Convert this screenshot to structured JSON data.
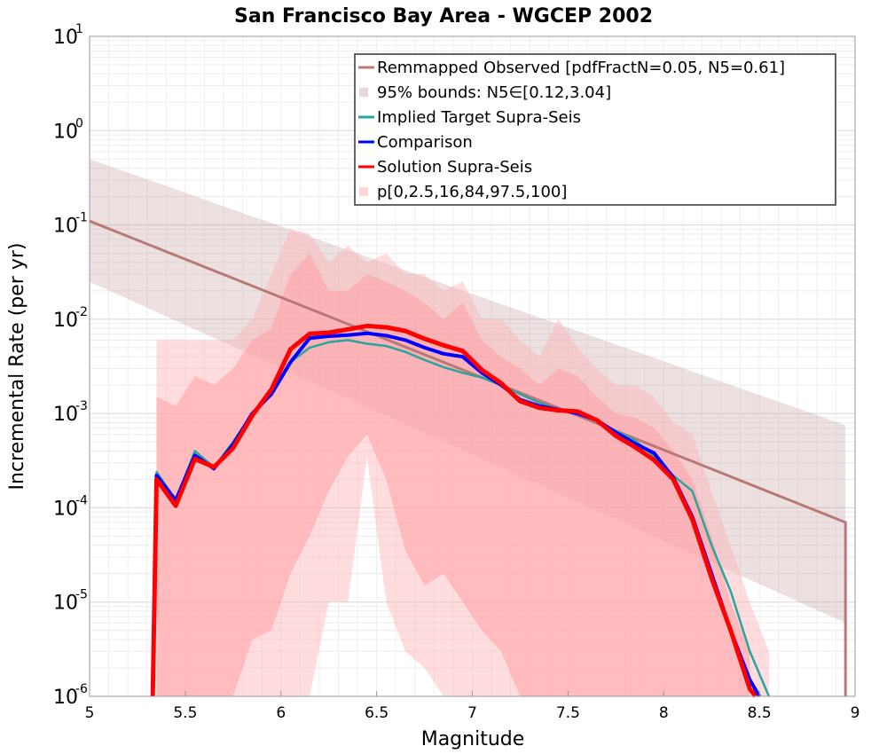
{
  "chart_data": {
    "type": "line",
    "title": "San Francisco Bay Area - WGCEP 2002",
    "xlabel": "Magnitude",
    "ylabel": "Incremental Rate (per yr)",
    "xlim": [
      5,
      9
    ],
    "ylim": [
      1e-06,
      10
    ],
    "yscale": "log",
    "grid": true,
    "legend_position": "top-right",
    "x_ticks": [
      {
        "value": 5,
        "label": "5"
      },
      {
        "value": 5.5,
        "label": "5.5"
      },
      {
        "value": 6,
        "label": "6"
      },
      {
        "value": 6.5,
        "label": "6.5"
      },
      {
        "value": 7,
        "label": "7"
      },
      {
        "value": 7.5,
        "label": "7.5"
      },
      {
        "value": 8,
        "label": "8"
      },
      {
        "value": 8.5,
        "label": "8.5"
      },
      {
        "value": 9,
        "label": "9"
      }
    ],
    "y_ticks": [
      {
        "value": 1e-06,
        "base": "10",
        "exp": "-6"
      },
      {
        "value": 1e-05,
        "base": "10",
        "exp": "-5"
      },
      {
        "value": 0.0001,
        "base": "10",
        "exp": "-4"
      },
      {
        "value": 0.001,
        "base": "10",
        "exp": "-3"
      },
      {
        "value": 0.01,
        "base": "10",
        "exp": "-2"
      },
      {
        "value": 0.1,
        "base": "10",
        "exp": "-1"
      },
      {
        "value": 1,
        "base": "10",
        "exp": "0"
      },
      {
        "value": 10,
        "base": "10",
        "exp": "1"
      }
    ],
    "bands": [
      {
        "name": "95% bounds: N5∈[0.12,3.04]",
        "color": "#b98f95",
        "opacity": 0.28,
        "x": [
          5.0,
          8.95
        ],
        "lower": [
          0.025,
          6e-06
        ],
        "upper": [
          0.5,
          0.00075
        ]
      },
      {
        "name": "p[0,2.5,16,84,97.5,100]",
        "color": "#ffb3b8",
        "opacity": 0.45,
        "x": [
          5.35,
          5.45,
          5.55,
          5.65,
          5.75,
          5.85,
          5.95,
          6.05,
          6.15,
          6.25,
          6.35,
          6.45,
          6.55,
          6.65,
          6.75,
          6.85,
          6.95,
          7.05,
          7.15,
          7.25,
          7.35,
          7.45,
          7.55,
          7.65,
          7.75,
          7.85,
          7.95,
          8.05,
          8.15,
          8.25,
          8.35,
          8.45,
          8.55
        ],
        "lower": [
          1e-06,
          1e-06,
          1e-06,
          1e-06,
          1e-06,
          1e-06,
          1e-06,
          1e-06,
          1e-06,
          1e-05,
          1e-05,
          0.00035,
          1e-05,
          3e-06,
          2e-06,
          1e-06,
          1e-06,
          1e-06,
          1e-06,
          1e-06,
          1e-06,
          1e-06,
          1e-06,
          1e-06,
          1e-06,
          1e-06,
          1e-06,
          1e-06,
          1e-06,
          1e-06,
          1e-06,
          1e-06,
          1e-06
        ],
        "upper": [
          0.006,
          0.006,
          0.006,
          0.006,
          0.006,
          0.01,
          0.03,
          0.09,
          0.08,
          0.04,
          0.06,
          0.04,
          0.05,
          0.03,
          0.03,
          0.02,
          0.025,
          0.01,
          0.01,
          0.006,
          0.004,
          0.01,
          0.005,
          0.003,
          0.002,
          0.002,
          0.0015,
          0.0008,
          0.0006,
          0.00015,
          4e-05,
          1e-05,
          3e-06
        ]
      },
      {
        "name": "p inner band",
        "color": "#ff9a9e",
        "opacity": 0.5,
        "x": [
          5.35,
          5.45,
          5.55,
          5.65,
          5.75,
          5.85,
          5.95,
          6.05,
          6.15,
          6.25,
          6.35,
          6.45,
          6.55,
          6.65,
          6.75,
          6.85,
          6.95,
          7.05,
          7.15,
          7.25,
          7.35,
          7.45,
          7.55,
          7.65,
          7.75,
          7.85,
          7.95,
          8.05,
          8.15,
          8.25,
          8.35,
          8.45
        ],
        "lower": [
          1e-06,
          1e-06,
          1e-06,
          1e-06,
          1e-06,
          4e-06,
          5e-06,
          2e-05,
          5e-05,
          0.00015,
          0.00035,
          0.0006,
          0.0002,
          3.5e-05,
          1.5e-05,
          2e-05,
          1e-05,
          5e-06,
          3e-06,
          1e-06,
          1e-06,
          1e-06,
          1e-06,
          1e-06,
          1e-06,
          1e-06,
          1e-06,
          1e-06,
          1e-06,
          1e-06,
          1e-06,
          1e-06
        ],
        "upper": [
          0.0015,
          0.0012,
          0.0025,
          0.002,
          0.003,
          0.006,
          0.008,
          0.03,
          0.05,
          0.02,
          0.02,
          0.03,
          0.025,
          0.02,
          0.015,
          0.01,
          0.015,
          0.006,
          0.004,
          0.003,
          0.002,
          0.003,
          0.0025,
          0.0015,
          0.001,
          0.0009,
          0.0007,
          0.0004,
          0.0002,
          5e-05,
          1e-05,
          3e-06
        ]
      }
    ],
    "series": [
      {
        "name": "Remmapped Observed [pdfFractN=0.05, N5=0.61]",
        "color": "#b87878",
        "width": 3,
        "x": [
          5.0,
          8.95,
          8.95
        ],
        "y": [
          0.11,
          7e-05,
          1e-06
        ]
      },
      {
        "name": "Implied Target Supra-Seis",
        "color": "#2aa59e",
        "width": 2.5,
        "x": [
          5.33,
          5.35,
          5.45,
          5.55,
          5.65,
          5.75,
          5.85,
          5.95,
          6.05,
          6.15,
          6.25,
          6.35,
          6.45,
          6.55,
          6.65,
          6.75,
          6.85,
          6.95,
          7.05,
          7.15,
          7.25,
          7.35,
          7.45,
          7.55,
          7.65,
          7.75,
          7.85,
          7.95,
          8.05,
          8.15,
          8.25,
          8.35,
          8.45,
          8.55
        ],
        "y": [
          1e-06,
          0.00024,
          0.00012,
          0.0004,
          0.00027,
          0.0005,
          0.001,
          0.0017,
          0.0035,
          0.005,
          0.0057,
          0.006,
          0.0055,
          0.0052,
          0.0045,
          0.0037,
          0.0031,
          0.0027,
          0.0024,
          0.002,
          0.0016,
          0.0013,
          0.0011,
          0.001,
          0.00085,
          0.00065,
          0.00052,
          0.00035,
          0.00022,
          0.00015,
          4e-05,
          1.3e-05,
          3e-06,
          1e-06
        ]
      },
      {
        "name": "Comparison",
        "color": "#0000ff",
        "width": 4,
        "x": [
          5.33,
          5.35,
          5.45,
          5.55,
          5.65,
          5.75,
          5.85,
          5.95,
          6.05,
          6.15,
          6.25,
          6.35,
          6.45,
          6.55,
          6.65,
          6.75,
          6.85,
          6.95,
          7.05,
          7.15,
          7.25,
          7.35,
          7.45,
          7.55,
          7.65,
          7.75,
          7.85,
          7.95,
          8.05,
          8.15,
          8.25,
          8.35,
          8.45,
          8.5
        ],
        "y": [
          1e-06,
          0.00022,
          0.00012,
          0.00036,
          0.00026,
          0.00047,
          0.001,
          0.0016,
          0.0035,
          0.0063,
          0.0066,
          0.0068,
          0.0071,
          0.0067,
          0.006,
          0.005,
          0.0043,
          0.004,
          0.0027,
          0.002,
          0.0014,
          0.0012,
          0.0011,
          0.001,
          0.00085,
          0.00063,
          0.00048,
          0.00038,
          0.00021,
          8e-05,
          2e-05,
          5e-06,
          1.5e-06,
          1e-06
        ]
      },
      {
        "name": "Solution Supra-Seis",
        "color": "#ff0000",
        "width": 5,
        "x": [
          5.33,
          5.35,
          5.45,
          5.55,
          5.65,
          5.75,
          5.85,
          5.95,
          6.05,
          6.15,
          6.25,
          6.35,
          6.45,
          6.55,
          6.65,
          6.75,
          6.85,
          6.95,
          7.05,
          7.15,
          7.25,
          7.35,
          7.45,
          7.55,
          7.65,
          7.75,
          7.85,
          7.95,
          8.05,
          8.15,
          8.25,
          8.35,
          8.45,
          8.48
        ],
        "y": [
          1e-06,
          0.0002,
          0.000105,
          0.00033,
          0.00027,
          0.00043,
          0.00095,
          0.0018,
          0.0048,
          0.007,
          0.0072,
          0.0078,
          0.0085,
          0.0082,
          0.0075,
          0.0062,
          0.0053,
          0.0046,
          0.0029,
          0.0021,
          0.00135,
          0.00115,
          0.00108,
          0.00105,
          0.00085,
          0.00058,
          0.00044,
          0.00032,
          0.0002,
          7.5e-05,
          1.8e-05,
          5e-06,
          1.2e-06,
          1e-06
        ]
      }
    ],
    "legend": [
      {
        "label": "Remmapped Observed [pdfFractN=0.05, N5=0.61]",
        "kind": "line",
        "color": "#b87878"
      },
      {
        "label": "95% bounds: N5∈[0.12,3.04]",
        "kind": "band",
        "color": "#e8d8da"
      },
      {
        "label": "Implied Target Supra-Seis",
        "kind": "line",
        "color": "#2aa59e"
      },
      {
        "label": "Comparison",
        "kind": "line",
        "color": "#0000ff"
      },
      {
        "label": "Solution Supra-Seis",
        "kind": "line",
        "color": "#ff0000"
      },
      {
        "label": "p[0,2.5,16,84,97.5,100]",
        "kind": "band",
        "color": "#ffd6d8"
      }
    ]
  }
}
